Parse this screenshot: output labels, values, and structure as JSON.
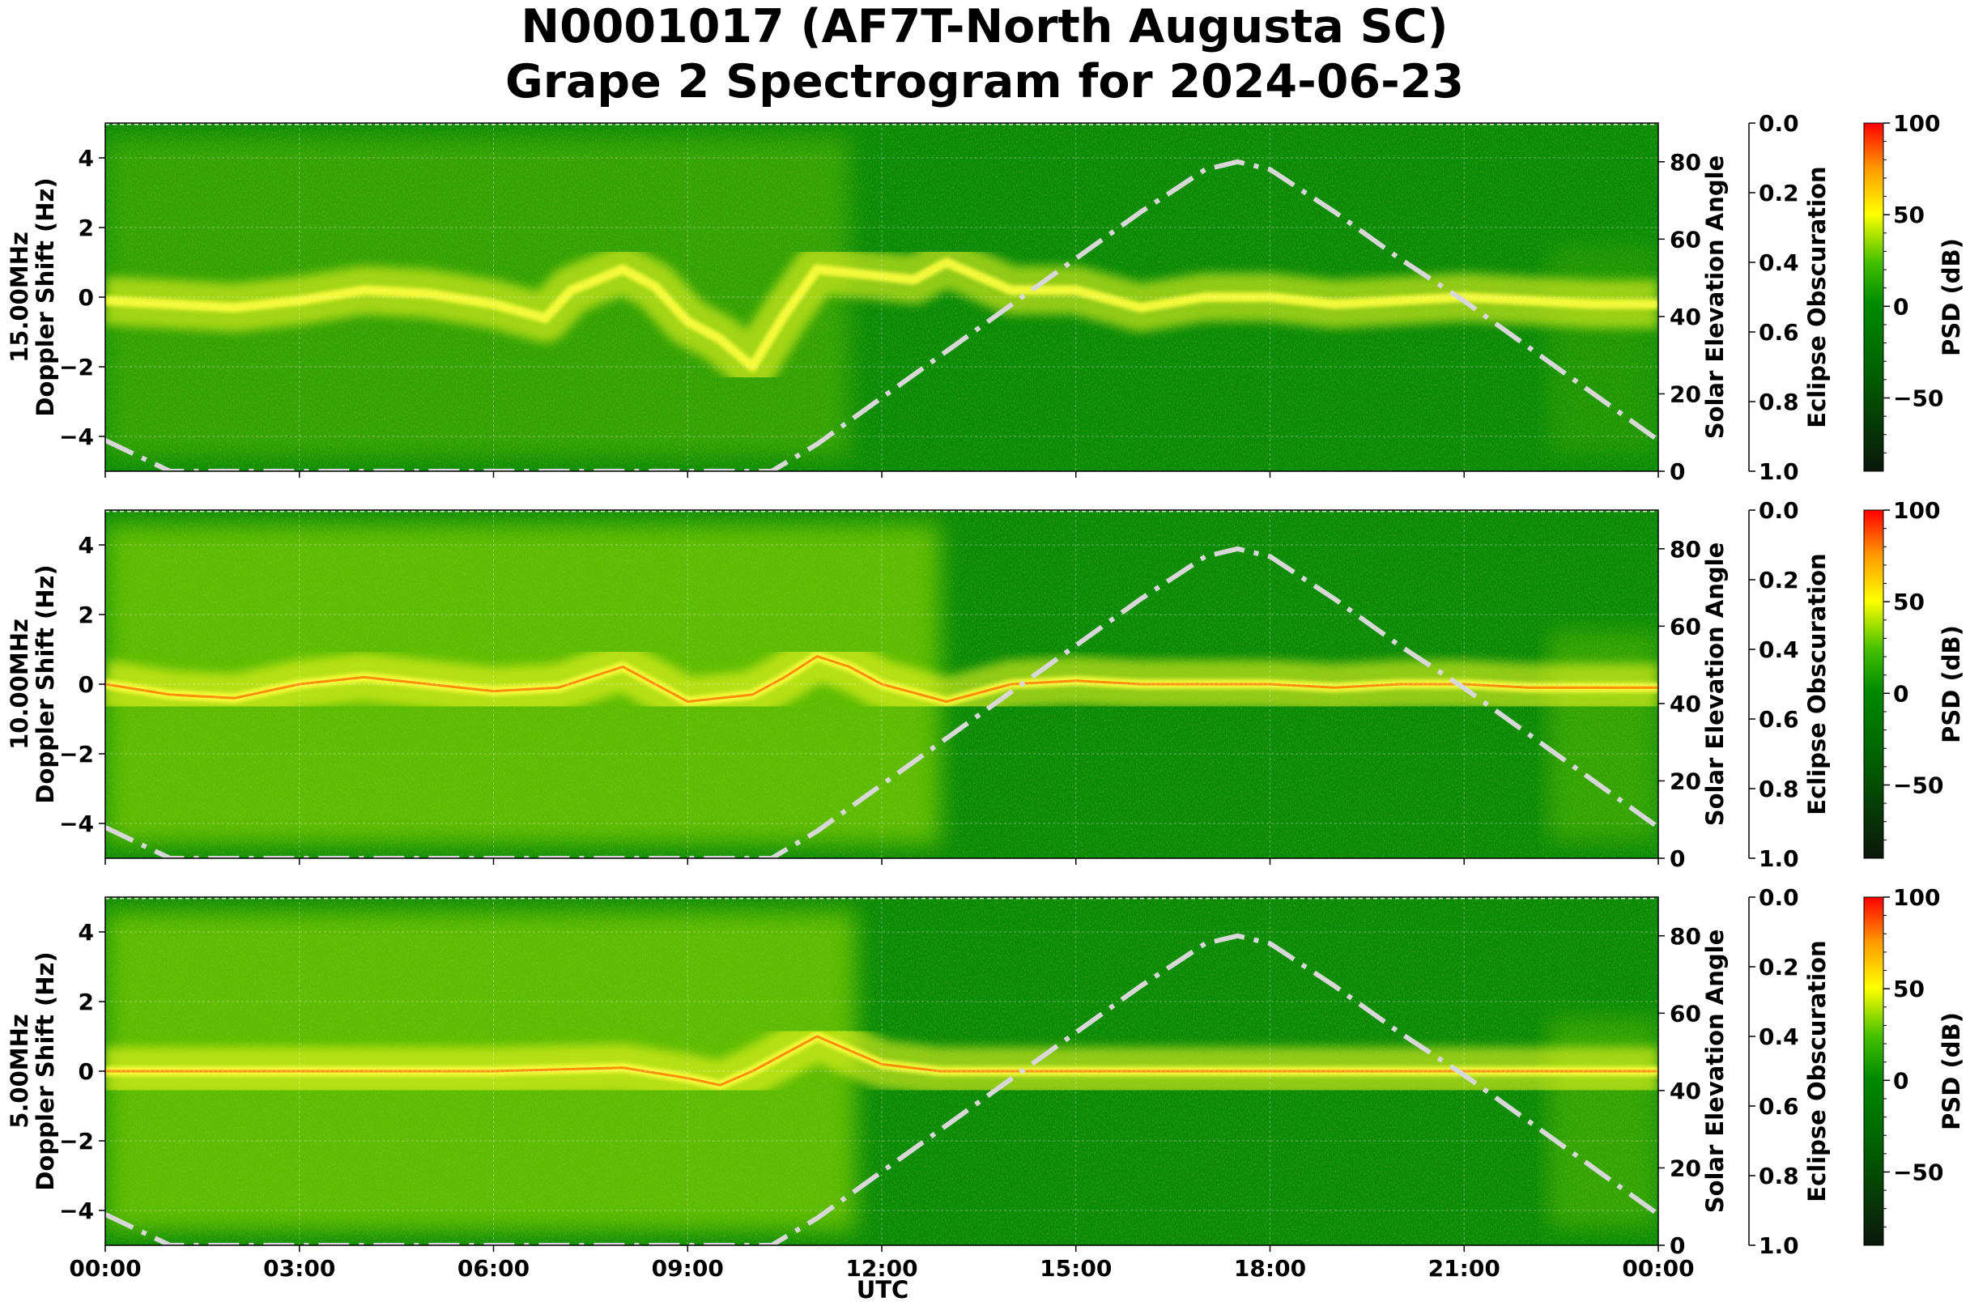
{
  "title_line1": "N0001017 (AF7T-North Augusta SC)",
  "title_line2": "Grape 2 Spectrogram for 2024-06-23",
  "xlabel": "UTC",
  "x_ticks": [
    "00:00",
    "03:00",
    "06:00",
    "09:00",
    "12:00",
    "15:00",
    "18:00",
    "21:00",
    "00:00"
  ],
  "y_ticks": [
    4,
    2,
    0,
    -2,
    -4
  ],
  "y_tick_labels": [
    "4",
    "2",
    "0",
    "−2",
    "−4"
  ],
  "elev_ticks": [
    0,
    20,
    40,
    60,
    80
  ],
  "elev_tick_labels": [
    "0",
    "20",
    "40",
    "60",
    "80"
  ],
  "eclipse_ticks": [
    "0.0",
    "0.2",
    "0.4",
    "0.6",
    "0.8",
    "1.0"
  ],
  "cbar_ticks": [
    100,
    50,
    0,
    -50
  ],
  "cbar_tick_labels": [
    "100",
    "50",
    "0",
    "−50"
  ],
  "colors": {
    "low": "#0b170b",
    "mid": "#007a00",
    "high_green": "#33cc00",
    "yellow": "#ffff00",
    "orange": "#ff8800",
    "red": "#ff0000",
    "elevation_curve": "#d8d8d8"
  },
  "chart_data": [
    {
      "type": "heatmap",
      "name": "15.00MHz",
      "ylabel_line1": "15.00MHz",
      "ylabel_line2": "Doppler Shift (Hz)",
      "y2label": "Solar Elevation Angle",
      "y3label": "Eclipse Obscuration",
      "cbar_label": "PSD (dB)",
      "xlim": [
        "00:00",
        "24:00"
      ],
      "ylim": [
        -5,
        5
      ],
      "y2lim": [
        0,
        90
      ],
      "y3lim": [
        1.0,
        0.0
      ],
      "cbar_lim": [
        -90,
        100
      ],
      "doppler_trace": {
        "x_hours": [
          0,
          1,
          2,
          3,
          4,
          5,
          6,
          6.8,
          7.2,
          8,
          8.5,
          9,
          9.5,
          10,
          10.5,
          11,
          11.5,
          12,
          12.5,
          13,
          14,
          15,
          16,
          17,
          18,
          19,
          20,
          21,
          22,
          23,
          24
        ],
        "y_hz": [
          -0.1,
          -0.2,
          -0.3,
          -0.1,
          0.2,
          0.1,
          -0.2,
          -0.6,
          0.2,
          0.8,
          0.3,
          -0.7,
          -1.2,
          -2.0,
          -0.5,
          0.8,
          0.7,
          0.6,
          0.5,
          1.0,
          0.2,
          0.2,
          -0.3,
          0.0,
          0.0,
          -0.2,
          -0.1,
          0.0,
          -0.1,
          -0.2,
          -0.2
        ]
      },
      "solar_elevation": {
        "x_hours": [
          0,
          0.5,
          1,
          10.3,
          11,
          12,
          13,
          14,
          15,
          16,
          17,
          17.5,
          18,
          19,
          20,
          21,
          22,
          23,
          24
        ],
        "deg": [
          8,
          4,
          0,
          0,
          7,
          19,
          31,
          43,
          55,
          67,
          78,
          80,
          78,
          67,
          55,
          44,
          32,
          20,
          8
        ]
      }
    },
    {
      "type": "heatmap",
      "name": "10.00MHz",
      "ylabel_line1": "10.00MHz",
      "ylabel_line2": "Doppler Shift (Hz)",
      "y2label": "Solar Elevation Angle",
      "y3label": "Eclipse Obscuration",
      "cbar_label": "PSD (dB)",
      "xlim": [
        "00:00",
        "24:00"
      ],
      "ylim": [
        -5,
        5
      ],
      "y2lim": [
        0,
        90
      ],
      "y3lim": [
        1.0,
        0.0
      ],
      "cbar_lim": [
        -90,
        100
      ],
      "doppler_trace": {
        "x_hours": [
          0,
          1,
          2,
          3,
          4,
          5,
          6,
          7,
          8,
          9,
          10,
          10.5,
          11,
          11.5,
          12,
          13,
          14,
          15,
          16,
          17,
          18,
          19,
          20,
          21,
          22,
          23,
          24
        ],
        "y_hz": [
          0.0,
          -0.3,
          -0.4,
          0.0,
          0.2,
          0.0,
          -0.2,
          -0.1,
          0.5,
          -0.5,
          -0.3,
          0.2,
          0.8,
          0.5,
          0.0,
          -0.5,
          0.0,
          0.1,
          0.0,
          0.0,
          0.0,
          -0.1,
          0.0,
          0.0,
          -0.1,
          -0.1,
          -0.1
        ]
      },
      "solar_elevation": {
        "x_hours": [
          0,
          0.5,
          1,
          10.3,
          11,
          12,
          13,
          14,
          15,
          16,
          17,
          17.5,
          18,
          19,
          20,
          21,
          22,
          23,
          24
        ],
        "deg": [
          8,
          4,
          0,
          0,
          7,
          19,
          31,
          43,
          55,
          67,
          78,
          80,
          78,
          67,
          55,
          44,
          32,
          20,
          8
        ]
      }
    },
    {
      "type": "heatmap",
      "name": "5.00MHz",
      "ylabel_line1": "5.00MHz",
      "ylabel_line2": "Doppler Shift (Hz)",
      "y2label": "Solar Elevation Angle",
      "y3label": "Eclipse Obscuration",
      "cbar_label": "PSD (dB)",
      "xlim": [
        "00:00",
        "24:00"
      ],
      "ylim": [
        -5,
        5
      ],
      "y2lim": [
        0,
        90
      ],
      "y3lim": [
        1.0,
        0.0
      ],
      "cbar_lim": [
        -90,
        100
      ],
      "doppler_trace": {
        "x_hours": [
          0,
          2,
          4,
          6,
          8,
          9,
          9.5,
          10,
          10.5,
          11,
          11.5,
          12,
          12.9,
          13,
          24
        ],
        "y_hz": [
          0.0,
          0.0,
          0.0,
          0.0,
          0.1,
          -0.2,
          -0.4,
          0.0,
          0.5,
          1.0,
          0.6,
          0.2,
          0.0,
          0.0,
          0.0
        ]
      },
      "solar_elevation": {
        "x_hours": [
          0,
          0.5,
          1,
          10.3,
          11,
          12,
          13,
          14,
          15,
          16,
          17,
          17.5,
          18,
          19,
          20,
          21,
          22,
          23,
          24
        ],
        "deg": [
          8,
          4,
          0,
          0,
          7,
          19,
          31,
          43,
          55,
          67,
          78,
          80,
          78,
          67,
          55,
          44,
          32,
          20,
          8
        ]
      }
    }
  ]
}
